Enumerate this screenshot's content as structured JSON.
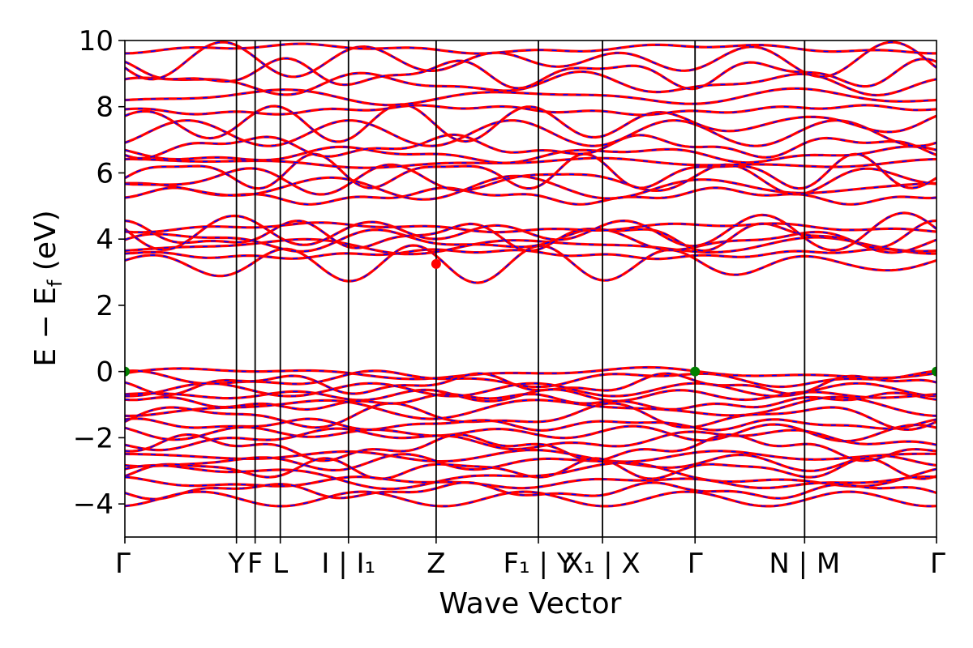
{
  "chart_data": {
    "type": "line",
    "title": "",
    "xlabel": "Wave Vector",
    "ylabel": "E − E_f (eV)",
    "ylabel_parts": {
      "main": "E − E",
      "sub": "f",
      "unit": " (eV)"
    },
    "ylim": [
      -5,
      10
    ],
    "yticks": [
      -4,
      -2,
      0,
      2,
      4,
      6,
      8,
      10
    ],
    "ytick_labels": [
      "−4",
      "−2",
      "0",
      "2",
      "4",
      "6",
      "8",
      "10"
    ],
    "xlim": [
      0,
      1
    ],
    "kpath_x": [
      0.0,
      0.1375,
      0.1605,
      0.1915,
      0.2755,
      0.3835,
      0.5095,
      0.5885,
      0.7025,
      0.8375,
      1.0
    ],
    "xtick_labels": [
      "Γ",
      "Y",
      "F",
      "L",
      "I | I₁",
      "Z",
      "F₁ | Y",
      "X₁ | X",
      "Γ",
      "N | M",
      "Γ"
    ],
    "series_colors": {
      "spin_up": "#ff0000",
      "spin_down": "#0000ff"
    },
    "valence_band_energies": [
      -0.05,
      -0.22,
      -0.38,
      -0.55,
      -0.72,
      -0.9,
      -1.1,
      -1.35,
      -1.6,
      -1.85,
      -2.05,
      -2.3,
      -2.55,
      -2.75,
      -2.95,
      -3.15,
      -3.35,
      -3.6,
      -3.85
    ],
    "conduction_band_energies": [
      3.25,
      3.55,
      3.8,
      3.95,
      4.1,
      4.22,
      4.35,
      5.3,
      5.55,
      5.8,
      6.0,
      6.3,
      6.55,
      6.8,
      7.2,
      7.5,
      7.9,
      8.3,
      8.7,
      9.0,
      9.4,
      9.75
    ],
    "markers": [
      {
        "name": "cbm",
        "x": 0.3835,
        "y": 3.25,
        "color": "#ff0000"
      },
      {
        "name": "vbm-1",
        "x": 0.0,
        "y": 0.0,
        "color": "#008000"
      },
      {
        "name": "vbm-2",
        "x": 0.7025,
        "y": 0.0,
        "color": "#008000"
      },
      {
        "name": "vbm-3",
        "x": 1.0,
        "y": 0.0,
        "color": "#008000"
      }
    ]
  }
}
